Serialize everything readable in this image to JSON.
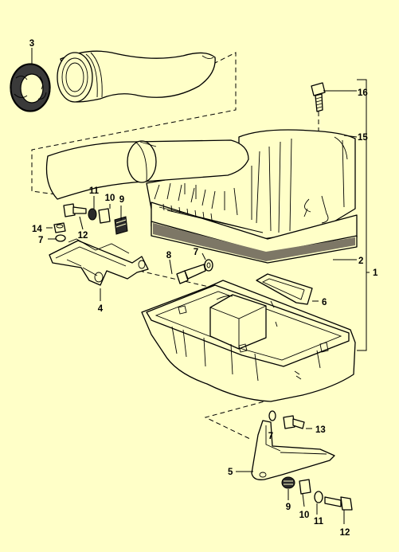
{
  "callouts": {
    "c3": "3",
    "c16": "16",
    "c15": "15",
    "c11a": "11",
    "c10a": "10",
    "c9a": "9",
    "c14": "14",
    "c12a": "12",
    "c7a": "7",
    "c8": "8",
    "c7b": "7",
    "c2": "2",
    "c1": "1",
    "c6": "6",
    "c4": "4",
    "c13": "13",
    "c7c": "7",
    "c5": "5",
    "c9b": "9",
    "c10b": "10",
    "c11b": "11",
    "c12b": "12"
  },
  "colors": {
    "background": "#ffffc8",
    "ink": "#000000"
  }
}
